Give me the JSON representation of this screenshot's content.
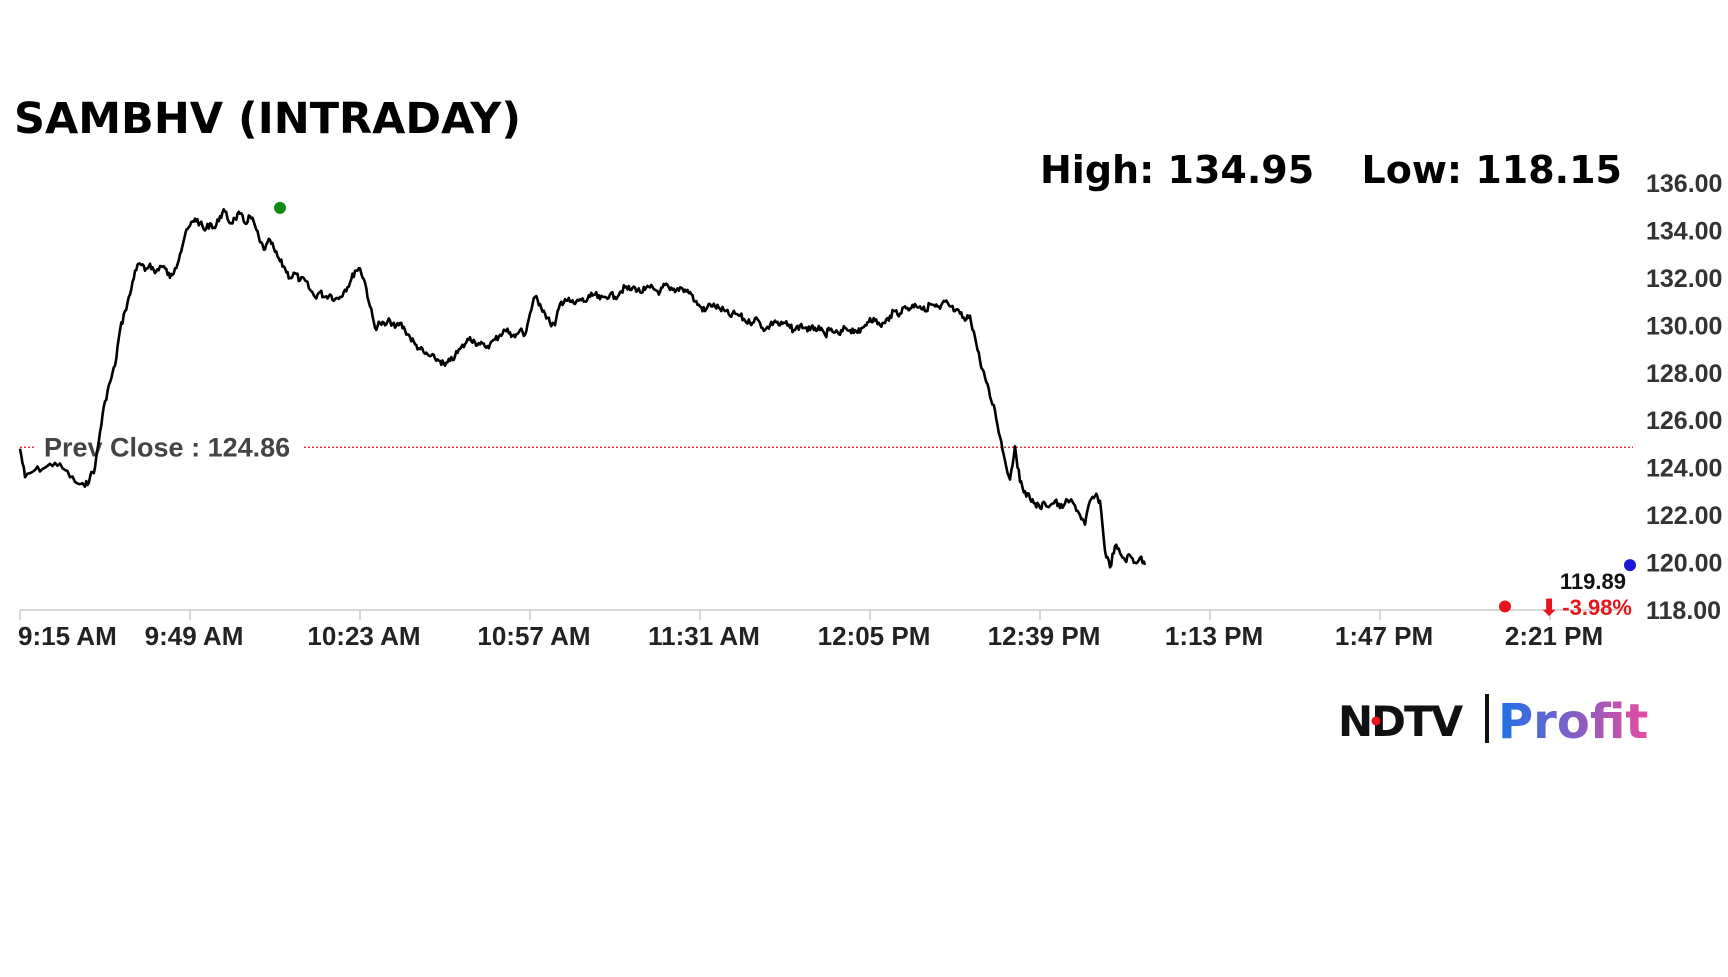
{
  "colors": {
    "line": "#000000",
    "prev_close_line": "#d9161e",
    "high_marker": "#118a11",
    "low_marker": "#e8141c",
    "last_marker": "#1a1ad6",
    "change_down": "#e8141c",
    "axis": "#cccccc",
    "brand_profit_start": "#1a73e8",
    "brand_profit_end": "#e94ba0"
  },
  "header": {
    "high_text": "High: 134.95",
    "low_text": "Low: 118.15"
  },
  "labels": {
    "last_value": "119.89",
    "change_arrow": "⬇",
    "change_value": "-3.98%"
  },
  "brand": {
    "ndtv": "NDTV",
    "profit": "Profit"
  },
  "chart_data": {
    "type": "line",
    "title": "SAMBHV (INTRADAY)",
    "xlabel": "",
    "ylabel": "",
    "ylim": [
      118,
      136
    ],
    "xlim_minutes": [
      "9:15",
      "14:37"
    ],
    "y_ticks": [
      "136.00",
      "134.00",
      "132.00",
      "130.00",
      "128.00",
      "126.00",
      "124.00",
      "122.00",
      "120.00",
      "118.00"
    ],
    "x_ticks": [
      {
        "t": "9:15",
        "label": "9:15 AM"
      },
      {
        "t": "9:49",
        "label": "9:49 AM"
      },
      {
        "t": "10:23",
        "label": "10:23 AM"
      },
      {
        "t": "10:57",
        "label": "10:57 AM"
      },
      {
        "t": "11:31",
        "label": "11:31 AM"
      },
      {
        "t": "12:05",
        "label": "12:05 PM"
      },
      {
        "t": "12:39",
        "label": "12:39 PM"
      },
      {
        "t": "13:13",
        "label": "1:13 PM"
      },
      {
        "t": "13:47",
        "label": "1:47 PM"
      },
      {
        "t": "14:21",
        "label": "2:21 PM"
      }
    ],
    "prev_close": 124.86,
    "prev_close_label": "Prev Close : 124.86",
    "high": {
      "t": "9:67",
      "value": 134.95
    },
    "low": {
      "t": "14:12",
      "value": 118.15
    },
    "last": {
      "t": "14:37",
      "value": 119.89
    },
    "change_pct": -3.98,
    "grid": false,
    "legend": "none",
    "series": [
      {
        "points": [
          [
            "9:15",
            124.8
          ],
          [
            "9:16",
            123.6
          ],
          [
            "9:18",
            123.9
          ],
          [
            "9:20",
            124.0
          ],
          [
            "9:22",
            124.2
          ],
          [
            "9:24",
            123.9
          ],
          [
            "9:26",
            123.4
          ],
          [
            "9:28",
            123.2
          ],
          [
            "9:29",
            123.6
          ],
          [
            "9:30",
            124.0
          ],
          [
            "9:31",
            125.5
          ],
          [
            "9:32",
            126.8
          ],
          [
            "9:33",
            127.6
          ],
          [
            "9:34",
            128.3
          ],
          [
            "9:35",
            129.8
          ],
          [
            "9:36",
            130.6
          ],
          [
            "9:37",
            131.3
          ],
          [
            "9:38",
            132.3
          ],
          [
            "9:39",
            132.6
          ],
          [
            "9:40",
            132.3
          ],
          [
            "9:41",
            132.6
          ],
          [
            "9:42",
            132.2
          ],
          [
            "9:43",
            132.5
          ],
          [
            "9:44",
            132.4
          ],
          [
            "9:45",
            132.0
          ],
          [
            "9:46",
            132.4
          ],
          [
            "9:47",
            133.0
          ],
          [
            "9:48",
            133.8
          ],
          [
            "9:49",
            134.2
          ],
          [
            "9:50",
            134.5
          ],
          [
            "9:51",
            134.3
          ],
          [
            "9:52",
            134.0
          ],
          [
            "9:53",
            134.3
          ],
          [
            "9:54",
            134.1
          ],
          [
            "9:55",
            134.6
          ],
          [
            "9:56",
            134.8
          ],
          [
            "9:57",
            134.3
          ],
          [
            "9:58",
            134.5
          ],
          [
            "9:59",
            134.7
          ],
          [
            "10:00",
            134.3
          ],
          [
            "10:01",
            134.6
          ],
          [
            "10:02",
            134.2
          ],
          [
            "10:03",
            133.5
          ],
          [
            "10:04",
            133.2
          ],
          [
            "10:05",
            133.6
          ],
          [
            "10:06",
            133.1
          ],
          [
            "10:07",
            132.7
          ],
          [
            "10:08",
            132.4
          ],
          [
            "10:09",
            132.0
          ],
          [
            "10:10",
            132.2
          ],
          [
            "10:11",
            131.9
          ],
          [
            "10:12",
            131.9
          ],
          [
            "10:13",
            131.5
          ],
          [
            "10:14",
            131.2
          ],
          [
            "10:15",
            131.4
          ],
          [
            "10:16",
            131.2
          ],
          [
            "10:17",
            131.3
          ],
          [
            "10:18",
            131.1
          ],
          [
            "10:19",
            131.2
          ],
          [
            "10:20",
            131.5
          ],
          [
            "10:21",
            131.8
          ],
          [
            "10:22",
            132.3
          ],
          [
            "10:23",
            132.4
          ],
          [
            "10:24",
            131.8
          ],
          [
            "10:25",
            130.8
          ],
          [
            "10:26",
            129.9
          ],
          [
            "10:27",
            130.1
          ],
          [
            "10:28",
            130.0
          ],
          [
            "10:29",
            130.2
          ],
          [
            "10:30",
            129.9
          ],
          [
            "10:31",
            130.1
          ],
          [
            "10:32",
            129.8
          ],
          [
            "10:33",
            129.5
          ],
          [
            "10:34",
            129.2
          ],
          [
            "10:35",
            129.0
          ],
          [
            "10:36",
            128.8
          ],
          [
            "10:37",
            128.7
          ],
          [
            "10:38",
            128.6
          ],
          [
            "10:39",
            128.5
          ],
          [
            "10:40",
            128.3
          ],
          [
            "10:41",
            128.5
          ],
          [
            "10:42",
            128.7
          ],
          [
            "10:43",
            129.0
          ],
          [
            "10:44",
            129.2
          ],
          [
            "10:45",
            129.5
          ],
          [
            "10:46",
            129.3
          ],
          [
            "10:47",
            129.2
          ],
          [
            "10:48",
            129.1
          ],
          [
            "10:49",
            129.2
          ],
          [
            "10:50",
            129.4
          ],
          [
            "10:51",
            129.6
          ],
          [
            "10:52",
            129.8
          ],
          [
            "10:53",
            129.7
          ],
          [
            "10:54",
            129.5
          ],
          [
            "10:55",
            129.8
          ],
          [
            "10:56",
            129.6
          ],
          [
            "10:57",
            130.5
          ],
          [
            "10:58",
            131.2
          ],
          [
            "10:59",
            130.9
          ],
          [
            "11:00",
            130.5
          ],
          [
            "11:01",
            130.1
          ],
          [
            "11:02",
            130.0
          ],
          [
            "11:03",
            130.9
          ],
          [
            "11:04",
            131.1
          ],
          [
            "11:05",
            131.0
          ],
          [
            "11:06",
            130.9
          ],
          [
            "11:07",
            131.1
          ],
          [
            "11:08",
            131.0
          ],
          [
            "11:09",
            131.2
          ],
          [
            "11:10",
            131.3
          ],
          [
            "11:11",
            131.1
          ],
          [
            "11:12",
            131.2
          ],
          [
            "11:13",
            131.3
          ],
          [
            "11:14",
            131.2
          ],
          [
            "11:15",
            131.4
          ],
          [
            "11:16",
            131.6
          ],
          [
            "11:17",
            131.5
          ],
          [
            "11:18",
            131.6
          ],
          [
            "11:19",
            131.4
          ],
          [
            "11:20",
            131.5
          ],
          [
            "11:21",
            131.6
          ],
          [
            "11:22",
            131.5
          ],
          [
            "11:23",
            131.4
          ],
          [
            "11:24",
            131.7
          ],
          [
            "11:25",
            131.5
          ],
          [
            "11:26",
            131.4
          ],
          [
            "11:27",
            131.6
          ],
          [
            "11:28",
            131.5
          ],
          [
            "11:29",
            131.4
          ],
          [
            "11:30",
            131.0
          ],
          [
            "11:31",
            130.8
          ],
          [
            "11:32",
            130.6
          ],
          [
            "11:33",
            130.9
          ],
          [
            "11:34",
            130.8
          ],
          [
            "11:35",
            130.7
          ],
          [
            "11:36",
            130.6
          ],
          [
            "11:37",
            130.4
          ],
          [
            "11:38",
            130.5
          ],
          [
            "11:39",
            130.4
          ],
          [
            "11:40",
            130.2
          ],
          [
            "11:41",
            130.1
          ],
          [
            "11:42",
            130.3
          ],
          [
            "11:43",
            130.1
          ],
          [
            "11:44",
            129.8
          ],
          [
            "11:45",
            130.0
          ],
          [
            "11:46",
            130.2
          ],
          [
            "11:47",
            130.0
          ],
          [
            "11:48",
            130.1
          ],
          [
            "11:49",
            129.9
          ],
          [
            "11:50",
            129.8
          ],
          [
            "11:51",
            130.0
          ],
          [
            "11:52",
            129.9
          ],
          [
            "11:53",
            129.8
          ],
          [
            "11:54",
            129.9
          ],
          [
            "11:55",
            129.8
          ],
          [
            "11:56",
            129.6
          ],
          [
            "11:57",
            129.8
          ],
          [
            "11:58",
            129.7
          ],
          [
            "11:59",
            129.6
          ],
          [
            "12:00",
            129.9
          ],
          [
            "12:01",
            129.8
          ],
          [
            "12:02",
            129.8
          ],
          [
            "12:03",
            129.7
          ],
          [
            "12:04",
            130.0
          ],
          [
            "12:05",
            130.3
          ],
          [
            "12:06",
            130.2
          ],
          [
            "12:07",
            130.0
          ],
          [
            "12:08",
            130.1
          ],
          [
            "12:09",
            130.4
          ],
          [
            "12:10",
            130.6
          ],
          [
            "12:11",
            130.5
          ],
          [
            "12:12",
            130.8
          ],
          [
            "12:13",
            130.7
          ],
          [
            "12:14",
            130.9
          ],
          [
            "12:15",
            130.8
          ],
          [
            "12:16",
            130.6
          ],
          [
            "12:17",
            130.9
          ],
          [
            "12:18",
            130.8
          ],
          [
            "12:19",
            130.7
          ],
          [
            "12:20",
            131.0
          ],
          [
            "12:21",
            130.8
          ],
          [
            "12:22",
            130.6
          ],
          [
            "12:23",
            130.5
          ],
          [
            "12:24",
            130.2
          ],
          [
            "12:25",
            130.4
          ],
          [
            "12:26",
            129.5
          ],
          [
            "12:27",
            128.5
          ],
          [
            "12:28",
            127.8
          ],
          [
            "12:29",
            127.0
          ],
          [
            "12:30",
            126.4
          ],
          [
            "12:31",
            125.3
          ],
          [
            "12:32",
            124.3
          ],
          [
            "12:33",
            123.5
          ],
          [
            "12:34",
            124.9
          ],
          [
            "12:35",
            123.4
          ],
          [
            "12:36",
            123.0
          ],
          [
            "12:37",
            122.7
          ],
          [
            "12:38",
            122.5
          ],
          [
            "12:39",
            122.3
          ],
          [
            "12:40",
            122.5
          ],
          [
            "12:41",
            122.4
          ],
          [
            "12:42",
            122.6
          ],
          [
            "12:43",
            122.3
          ],
          [
            "12:44",
            122.5
          ],
          [
            "12:45",
            122.6
          ],
          [
            "12:46",
            122.4
          ],
          [
            "12:47",
            122.0
          ],
          [
            "12:48",
            121.6
          ],
          [
            "12:49",
            122.6
          ],
          [
            "12:50",
            122.8
          ],
          [
            "12:51",
            122.6
          ],
          [
            "12:52",
            120.5
          ],
          [
            "12:53",
            119.8
          ],
          [
            "12:54",
            120.7
          ],
          [
            "12:55",
            120.4
          ],
          [
            "12:56",
            120.1
          ],
          [
            "12:57",
            120.3
          ],
          [
            "12:58",
            120.0
          ],
          [
            "12:59",
            120.2
          ],
          [
            "13:00",
            119.9
          ]
        ]
      }
    ]
  }
}
